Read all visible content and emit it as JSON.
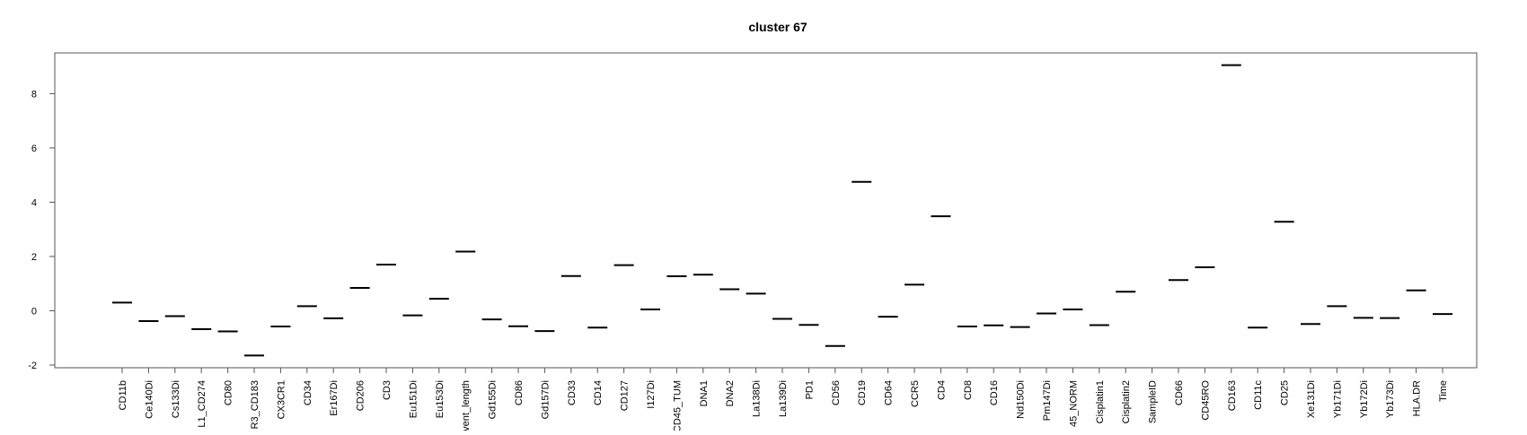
{
  "chart_data": {
    "type": "scatter",
    "marker": "horizontal-dash",
    "title": "cluster 67",
    "xlabel": "",
    "ylabel": "",
    "ylim": [
      -2.1,
      9.5
    ],
    "y_ticks": [
      -2,
      0,
      2,
      4,
      6,
      8
    ],
    "y_tick_labels": [
      "-2",
      "0",
      "2",
      "4",
      "6",
      "8"
    ],
    "grid": false,
    "legend": "none",
    "colors": {
      "marks": "#000000",
      "frame": "#555555",
      "background": "#ffffff"
    },
    "categories": [
      "CD11b",
      "Ce140Di",
      "Cs133Di",
      "L1_CD274",
      "CD80",
      "R3_CD183",
      "CX3CR1",
      "CD34",
      "Er167Di",
      "CD206",
      "CD3",
      "Eu151Di",
      "Eu153Di",
      "vent_length",
      "Gd155Di",
      "CD86",
      "Gd157Di",
      "CD33",
      "CD14",
      "CD127",
      "I127Di",
      "CD45_TUM",
      "DNA1",
      "DNA2",
      "La138Di",
      "La139Di",
      "PD1",
      "CD56",
      "CD19",
      "CD64",
      "CCR5",
      "CD4",
      "CD8",
      "CD16",
      "Nd150Di",
      "Pm147Di",
      "45_NORM",
      "Cisplatin1",
      "Cisplatin2",
      "SampleID",
      "CD66",
      "CD45RO",
      "CD163",
      "CD11c",
      "CD25",
      "Xe131Di",
      "Yb171Di",
      "Yb172Di",
      "Yb173Di",
      "HLA.DR",
      "Time"
    ],
    "values": [
      0.3,
      -0.38,
      -0.2,
      -0.68,
      -0.76,
      -1.65,
      -0.58,
      0.17,
      -0.28,
      0.84,
      1.7,
      -0.17,
      0.44,
      2.18,
      -0.32,
      -0.57,
      -0.75,
      1.28,
      -0.62,
      1.68,
      0.05,
      1.27,
      1.33,
      0.79,
      0.63,
      -0.3,
      -0.52,
      -1.3,
      4.75,
      -0.22,
      0.96,
      3.48,
      -0.58,
      -0.54,
      -0.6,
      -0.1,
      0.05,
      -0.53,
      0.7,
      null,
      1.13,
      1.6,
      9.05,
      -0.62,
      3.28,
      -0.49,
      0.17,
      -0.26,
      -0.27,
      0.75,
      -0.12
    ]
  }
}
